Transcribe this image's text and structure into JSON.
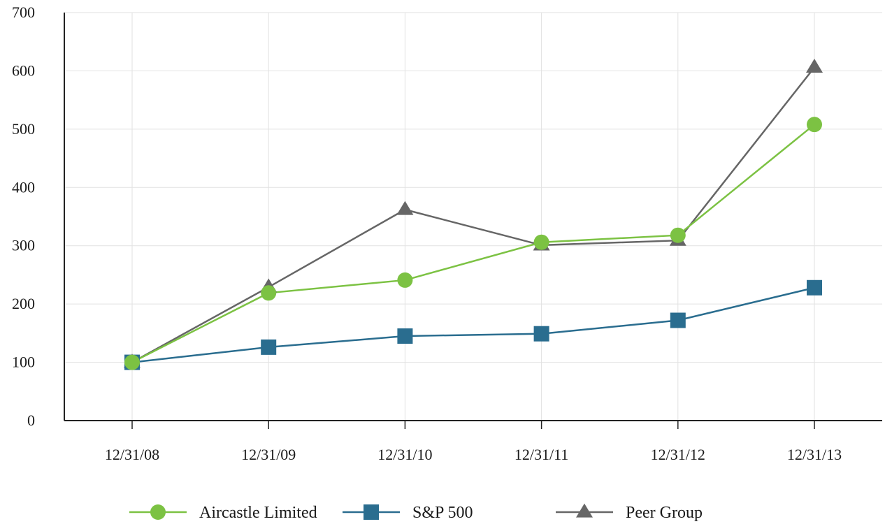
{
  "chart_data": {
    "type": "line",
    "title": "",
    "xlabel": "",
    "ylabel": "",
    "categories": [
      "12/31/08",
      "12/31/09",
      "12/31/10",
      "12/31/11",
      "12/31/12",
      "12/31/13"
    ],
    "ylim": [
      0,
      700
    ],
    "yticks": [
      0,
      100,
      200,
      300,
      400,
      500,
      600,
      700
    ],
    "grid": true,
    "legend_position": "bottom",
    "series": [
      {
        "name": "Aircastle Limited",
        "values": [
          100,
          219,
          241,
          306,
          318,
          508
        ],
        "color": "#7cc243",
        "marker": "circle"
      },
      {
        "name": "S&P 500",
        "values": [
          100,
          126,
          145,
          149,
          172,
          228
        ],
        "color": "#2a6d8f",
        "marker": "square"
      },
      {
        "name": "Peer Group",
        "values": [
          100,
          229,
          362,
          301,
          309,
          606
        ],
        "color": "#666666",
        "marker": "triangle"
      }
    ]
  }
}
